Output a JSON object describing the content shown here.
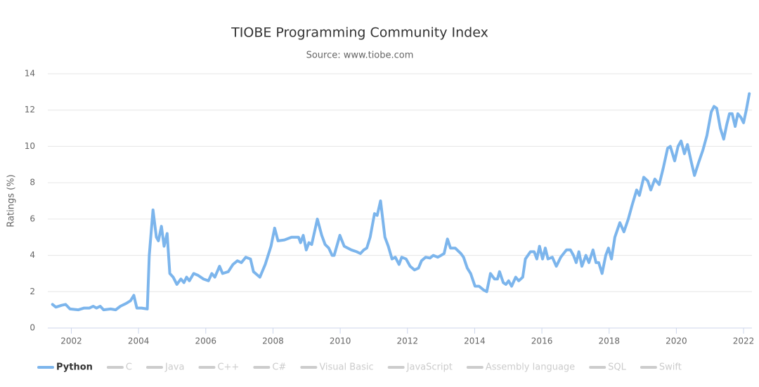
{
  "chart_data": {
    "type": "line",
    "title": "TIOBE Programming Community Index",
    "subtitle": "Source: www.tiobe.com",
    "y_label": "Ratings (%)",
    "x": [
      2001.44,
      2001.54,
      2001.71,
      2001.83,
      2001.96,
      2002.21,
      2002.38,
      2002.54,
      2002.65,
      2002.75,
      2002.86,
      2002.96,
      2003.17,
      2003.32,
      2003.46,
      2003.63,
      2003.76,
      2003.86,
      2003.95,
      2004.09,
      2004.26,
      2004.32,
      2004.43,
      2004.53,
      2004.59,
      2004.68,
      2004.76,
      2004.85,
      2004.93,
      2005.03,
      2005.14,
      2005.26,
      2005.35,
      2005.43,
      2005.51,
      2005.64,
      2005.77,
      2005.93,
      2006.08,
      2006.18,
      2006.27,
      2006.41,
      2006.5,
      2006.67,
      2006.81,
      2006.94,
      2007.06,
      2007.19,
      2007.33,
      2007.42,
      2007.61,
      2007.77,
      2007.94,
      2008.05,
      2008.15,
      2008.34,
      2008.55,
      2008.76,
      2008.82,
      2008.9,
      2008.99,
      2009.07,
      2009.15,
      2009.32,
      2009.45,
      2009.55,
      2009.66,
      2009.76,
      2009.82,
      2009.99,
      2010.12,
      2010.33,
      2010.49,
      2010.6,
      2010.7,
      2010.79,
      2010.89,
      2011.02,
      2011.1,
      2011.2,
      2011.33,
      2011.43,
      2011.54,
      2011.64,
      2011.75,
      2011.83,
      2011.96,
      2012.08,
      2012.21,
      2012.33,
      2012.42,
      2012.54,
      2012.67,
      2012.77,
      2012.9,
      2013.0,
      2013.09,
      2013.19,
      2013.28,
      2013.42,
      2013.59,
      2013.67,
      2013.78,
      2013.88,
      2014.01,
      2014.13,
      2014.26,
      2014.36,
      2014.47,
      2014.59,
      2014.68,
      2014.74,
      2014.85,
      2014.93,
      2015.01,
      2015.1,
      2015.22,
      2015.31,
      2015.43,
      2015.51,
      2015.66,
      2015.77,
      2015.85,
      2015.93,
      2016.02,
      2016.1,
      2016.18,
      2016.31,
      2016.43,
      2016.56,
      2016.73,
      2016.85,
      2016.94,
      2017.02,
      2017.1,
      2017.19,
      2017.31,
      2017.4,
      2017.52,
      2017.61,
      2017.69,
      2017.79,
      2017.9,
      2017.98,
      2018.07,
      2018.17,
      2018.32,
      2018.44,
      2018.57,
      2018.69,
      2018.82,
      2018.9,
      2019.03,
      2019.15,
      2019.24,
      2019.36,
      2019.49,
      2019.61,
      2019.74,
      2019.82,
      2019.95,
      2020.05,
      2020.14,
      2020.24,
      2020.33,
      2020.45,
      2020.54,
      2020.66,
      2020.79,
      2020.91,
      2021.04,
      2021.12,
      2021.2,
      2021.31,
      2021.41,
      2021.5,
      2021.58,
      2021.66,
      2021.75,
      2021.83,
      2021.92,
      2022.0,
      2022.08,
      2022.17
    ],
    "series": [
      {
        "name": "Python",
        "color": "#7cb5ec",
        "values": [
          1.3,
          1.15,
          1.25,
          1.3,
          1.05,
          1.0,
          1.1,
          1.1,
          1.2,
          1.1,
          1.2,
          1.0,
          1.05,
          1.0,
          1.2,
          1.35,
          1.5,
          1.8,
          1.1,
          1.1,
          1.05,
          4.0,
          6.5,
          5.0,
          4.8,
          5.6,
          4.5,
          5.2,
          3.0,
          2.8,
          2.4,
          2.7,
          2.5,
          2.8,
          2.6,
          3.0,
          2.9,
          2.7,
          2.6,
          3.0,
          2.8,
          3.4,
          3.0,
          3.1,
          3.5,
          3.7,
          3.6,
          3.9,
          3.8,
          3.1,
          2.8,
          3.5,
          4.5,
          5.5,
          4.8,
          4.85,
          5.0,
          5.0,
          4.7,
          5.1,
          4.3,
          4.7,
          4.6,
          6.0,
          5.1,
          4.6,
          4.4,
          4.0,
          4.0,
          5.1,
          4.5,
          4.3,
          4.2,
          4.1,
          4.3,
          4.4,
          5.0,
          6.3,
          6.2,
          7.0,
          5.0,
          4.5,
          3.8,
          3.9,
          3.5,
          3.9,
          3.8,
          3.4,
          3.2,
          3.3,
          3.7,
          3.9,
          3.85,
          4.0,
          3.9,
          4.0,
          4.1,
          4.9,
          4.4,
          4.4,
          4.1,
          3.9,
          3.3,
          3.0,
          2.3,
          2.3,
          2.1,
          2.0,
          3.0,
          2.7,
          2.7,
          3.1,
          2.5,
          2.4,
          2.6,
          2.3,
          2.8,
          2.6,
          2.8,
          3.8,
          4.2,
          4.2,
          3.8,
          4.5,
          3.8,
          4.4,
          3.8,
          3.9,
          3.4,
          3.9,
          4.3,
          4.3,
          4.0,
          3.6,
          4.2,
          3.4,
          4.0,
          3.6,
          4.3,
          3.6,
          3.6,
          3.0,
          4.0,
          4.4,
          3.8,
          5.0,
          5.8,
          5.3,
          6.0,
          6.8,
          7.6,
          7.3,
          8.3,
          8.1,
          7.6,
          8.2,
          7.9,
          8.8,
          9.9,
          10.0,
          9.2,
          10.0,
          10.3,
          9.6,
          10.1,
          9.1,
          8.4,
          9.1,
          9.8,
          10.6,
          11.9,
          12.2,
          12.1,
          11.0,
          10.4,
          11.2,
          11.8,
          11.8,
          11.1,
          11.8,
          11.6,
          11.3,
          12.0,
          12.9
        ]
      }
    ],
    "hidden_series": [
      "C",
      "Java",
      "C++",
      "C#",
      "Visual Basic",
      "JavaScript",
      "Assembly language",
      "SQL",
      "Swift"
    ],
    "hidden_color": "#cccccc",
    "xlim": [
      2001.3,
      2022.25
    ],
    "xticks": [
      2002,
      2004,
      2006,
      2008,
      2010,
      2012,
      2014,
      2016,
      2018,
      2020,
      2022
    ],
    "ylim": [
      0,
      14
    ],
    "yticks": [
      0,
      2,
      4,
      6,
      8,
      10,
      12,
      14
    ],
    "grid": true
  }
}
